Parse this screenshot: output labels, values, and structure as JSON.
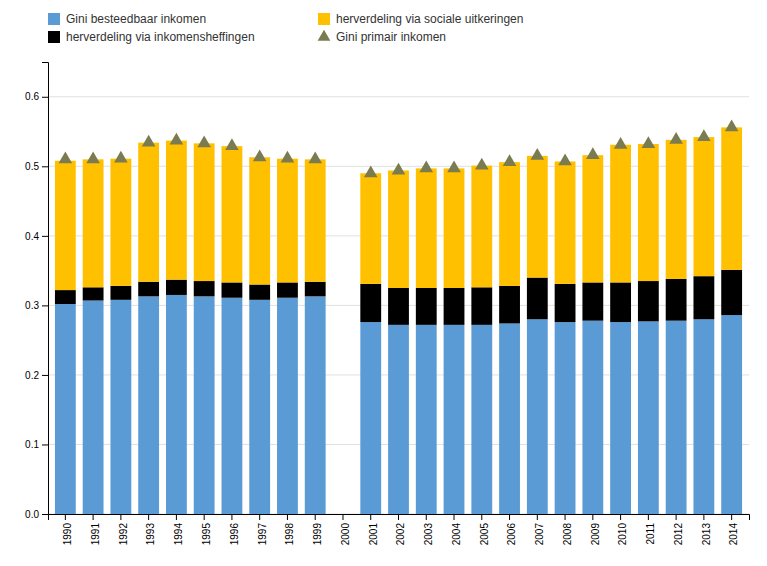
{
  "chart_data": {
    "type": "bar",
    "stacked": true,
    "categories": [
      "1990",
      "1991",
      "1992",
      "1993",
      "1994",
      "1995",
      "1996",
      "1997",
      "1998",
      "1999",
      "2000",
      "2001",
      "2002",
      "2003",
      "2004",
      "2005",
      "2006",
      "2007",
      "2008",
      "2009",
      "2010",
      "2011",
      "2012",
      "2013",
      "2014"
    ],
    "series": [
      {
        "name": "Gini besteedbaar inkomen",
        "color": "#5B9BD5",
        "type": "bar",
        "values": [
          0.302,
          0.307,
          0.308,
          0.313,
          0.315,
          0.313,
          0.311,
          0.308,
          0.311,
          0.313,
          0.0,
          0.276,
          0.272,
          0.272,
          0.272,
          0.272,
          0.274,
          0.28,
          0.276,
          0.278,
          0.276,
          0.277,
          0.278,
          0.28,
          0.286
        ]
      },
      {
        "name": "herverdeling via inkomensheffingen",
        "color": "#000000",
        "type": "bar",
        "values": [
          0.02,
          0.019,
          0.02,
          0.021,
          0.022,
          0.022,
          0.022,
          0.022,
          0.022,
          0.021,
          0.0,
          0.055,
          0.053,
          0.053,
          0.053,
          0.054,
          0.054,
          0.06,
          0.055,
          0.055,
          0.057,
          0.058,
          0.06,
          0.062,
          0.065
        ]
      },
      {
        "name": "herverdeling via sociale uitkeringen",
        "color": "#FFC000",
        "type": "bar",
        "values": [
          0.186,
          0.184,
          0.183,
          0.2,
          0.2,
          0.198,
          0.196,
          0.183,
          0.178,
          0.176,
          0.0,
          0.159,
          0.169,
          0.172,
          0.172,
          0.175,
          0.178,
          0.175,
          0.176,
          0.183,
          0.198,
          0.197,
          0.2,
          0.2,
          0.205
        ]
      },
      {
        "name": "Gini primair inkomen",
        "color": "#7B7B52",
        "type": "scatter",
        "marker": "triangle",
        "values": [
          0.51,
          0.51,
          0.511,
          0.534,
          0.537,
          0.533,
          0.529,
          0.513,
          0.511,
          0.51,
          null,
          0.49,
          0.494,
          0.497,
          0.497,
          0.501,
          0.506,
          0.515,
          0.507,
          0.516,
          0.531,
          0.532,
          0.538,
          0.542,
          0.556
        ]
      }
    ],
    "ylim": [
      0.0,
      0.65
    ],
    "yticks": [
      {
        "value": 0.0,
        "label": "0.0"
      },
      0.1,
      0.2,
      0.3,
      0.4,
      0.5,
      0.6
    ],
    "grid": true,
    "legend": "upper left"
  }
}
